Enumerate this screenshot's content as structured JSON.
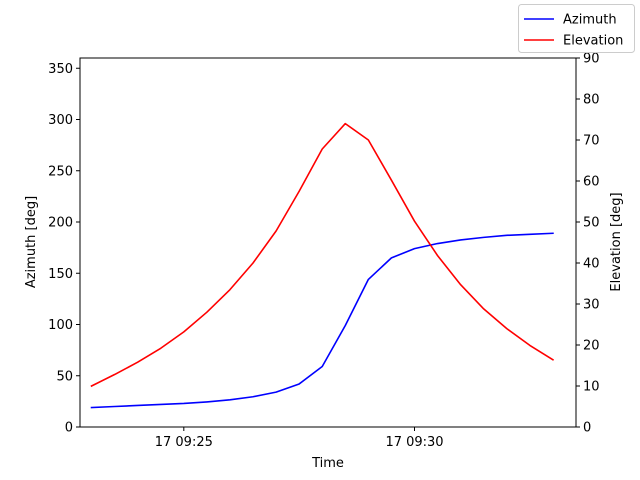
{
  "chart_data": {
    "type": "line",
    "xlabel": "Time",
    "ylabel_left": "Azimuth [deg]",
    "ylabel_right": "Elevation [deg]",
    "x_ticks": [
      "17 09:25",
      "17 09:30"
    ],
    "x_tick_values": [
      "09:25:00",
      "09:30:00"
    ],
    "x": [
      "09:23:00",
      "09:23:30",
      "09:24:00",
      "09:24:30",
      "09:25:00",
      "09:25:30",
      "09:26:00",
      "09:26:30",
      "09:27:00",
      "09:27:30",
      "09:28:00",
      "09:28:30",
      "09:29:00",
      "09:29:30",
      "09:30:00",
      "09:30:30",
      "09:31:00",
      "09:31:30",
      "09:32:00",
      "09:32:30",
      "09:33:00"
    ],
    "xlim": [
      "09:22:45",
      "09:33:30"
    ],
    "y_left_lim": [
      0,
      360
    ],
    "y_left_ticks": [
      0,
      50,
      100,
      150,
      200,
      250,
      300,
      350
    ],
    "y_right_lim": [
      0,
      90
    ],
    "y_right_ticks": [
      0,
      10,
      20,
      30,
      40,
      50,
      60,
      70,
      80,
      90
    ],
    "grid": false,
    "legend_position": "top-right, outside axes",
    "series": [
      {
        "name": "Azimuth",
        "axis": "left",
        "color": "#0000ff",
        "values": [
          19,
          20,
          21,
          22,
          23,
          24.5,
          26.5,
          29.5,
          34,
          42,
          59,
          99,
          144,
          165,
          174,
          179,
          182.5,
          185,
          187,
          188,
          189
        ]
      },
      {
        "name": "Elevation",
        "axis": "right",
        "color": "#ff0000",
        "values": [
          10,
          12.8,
          15.8,
          19.2,
          23.2,
          28,
          33.5,
          40,
          47.8,
          57.5,
          67.8,
          74,
          70,
          60.2,
          50.2,
          41.8,
          34.7,
          28.8,
          24,
          19.9,
          16.4
        ]
      }
    ]
  }
}
